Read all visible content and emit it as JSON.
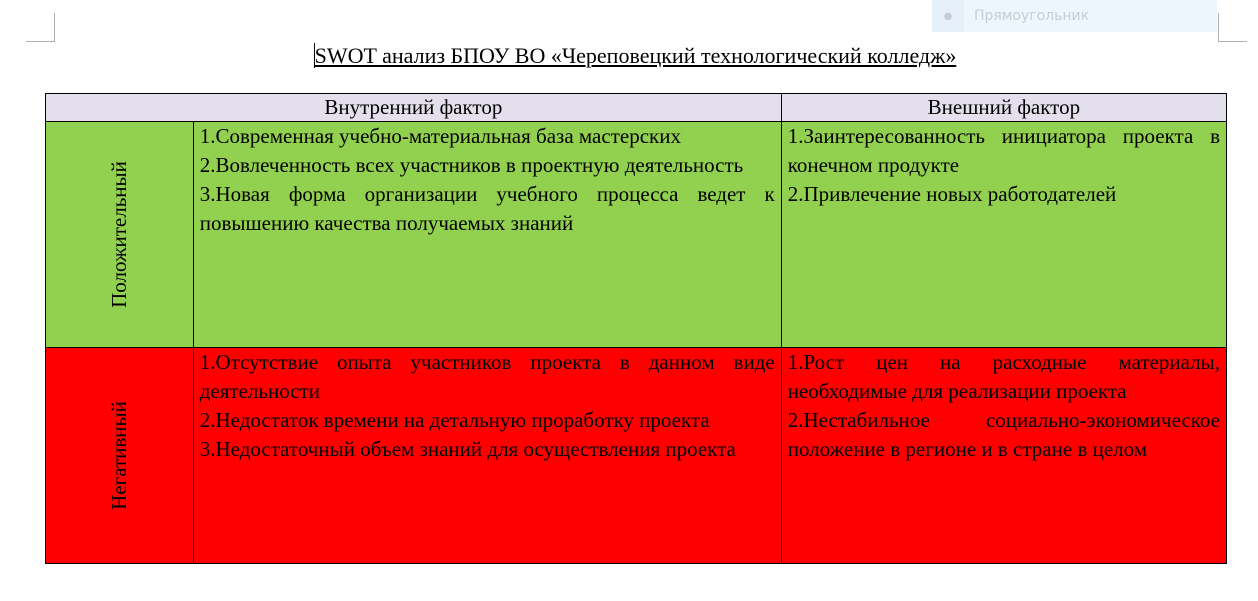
{
  "tooltip": {
    "label": "Прямоугольник"
  },
  "title": "SWOT анализ БПОУ ВО «Череповецкий технологический колледж»",
  "table": {
    "headers": [
      "Внутренний фактор",
      "Внешний фактор"
    ],
    "rows": [
      {
        "label": "Положительный",
        "color": "#92d050",
        "internal": [
          "1.Современная учебно-материальная база мастерских",
          "2.Вовлеченность всех участников в проектную деятельность",
          "3.Новая форма организации учебного процесса ведет к повышению качества получаемых знаний"
        ],
        "external": [
          "1.Заинтересованность инициатора проекта в конечном продукте",
          "2.Привлечение новых работодателей"
        ]
      },
      {
        "label": "Негативный",
        "color": "#ff0000",
        "internal": [
          "1.Отсутствие опыта участников проекта в данном виде деятельности",
          "2.Недостаток времени на детальную проработку проекта",
          "3.Недостаточный объем знаний для осуществления проекта"
        ],
        "external": [
          "1.Рост цен на расходные материалы, необходимые для реализации проекта",
          "2.Нестабильное социально-экономическое положение в регионе и в стране в целом"
        ]
      }
    ],
    "header_color": "#e4dfec"
  }
}
